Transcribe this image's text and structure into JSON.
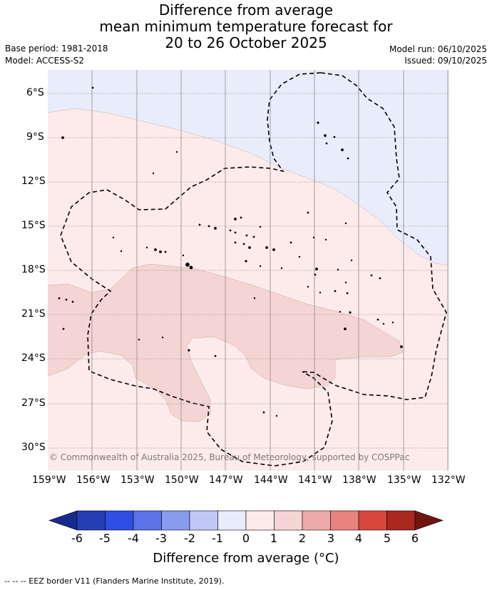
{
  "title": {
    "line1": "Difference from average",
    "line2": "mean minimum temperature forecast for",
    "line3": "20 to 26 October 2025"
  },
  "meta": {
    "base_period": "Base period: 1981-2018",
    "model": "Model: ACCESS-S2",
    "model_run": "Model run: 06/10/2025",
    "issued": "Issued: 09/10/2025"
  },
  "map": {
    "lat_labels": [
      "6°S",
      "9°S",
      "12°S",
      "15°S",
      "18°S",
      "21°S",
      "24°S",
      "27°S",
      "30°S"
    ],
    "lon_labels": [
      "159°W",
      "156°W",
      "153°W",
      "150°W",
      "147°W",
      "144°W",
      "141°W",
      "138°W",
      "135°W",
      "132°W"
    ],
    "copyright": "© Commonwealth of Australia 2025, Bureau of Meteorology, supported by COSPPac",
    "colors": {
      "band_minus1_0": "#e9ecfb",
      "band_0_1": "#fcebea",
      "band_1_2": "#f5d5d3",
      "graticule": "#808080",
      "eez": "#000000",
      "land": "#000000"
    }
  },
  "colorbar": {
    "tick_labels": [
      "-6",
      "-5",
      "-4",
      "-3",
      "-2",
      "-1",
      "0",
      "1",
      "2",
      "3",
      "4",
      "5",
      "6"
    ],
    "colors": [
      "#152a8c",
      "#243fb4",
      "#2e4ee6",
      "#5c72e6",
      "#8a9aee",
      "#c2c8f6",
      "#e9ecfb",
      "#fcebea",
      "#f5d5d3",
      "#eeaaa8",
      "#e8837e",
      "#d8473e",
      "#a82820",
      "#6e1510"
    ],
    "title": "Difference from average (°C)"
  },
  "footer": {
    "legend": "-- -- -- EEZ border V11 (Flanders Marine Institute, 2019)."
  }
}
